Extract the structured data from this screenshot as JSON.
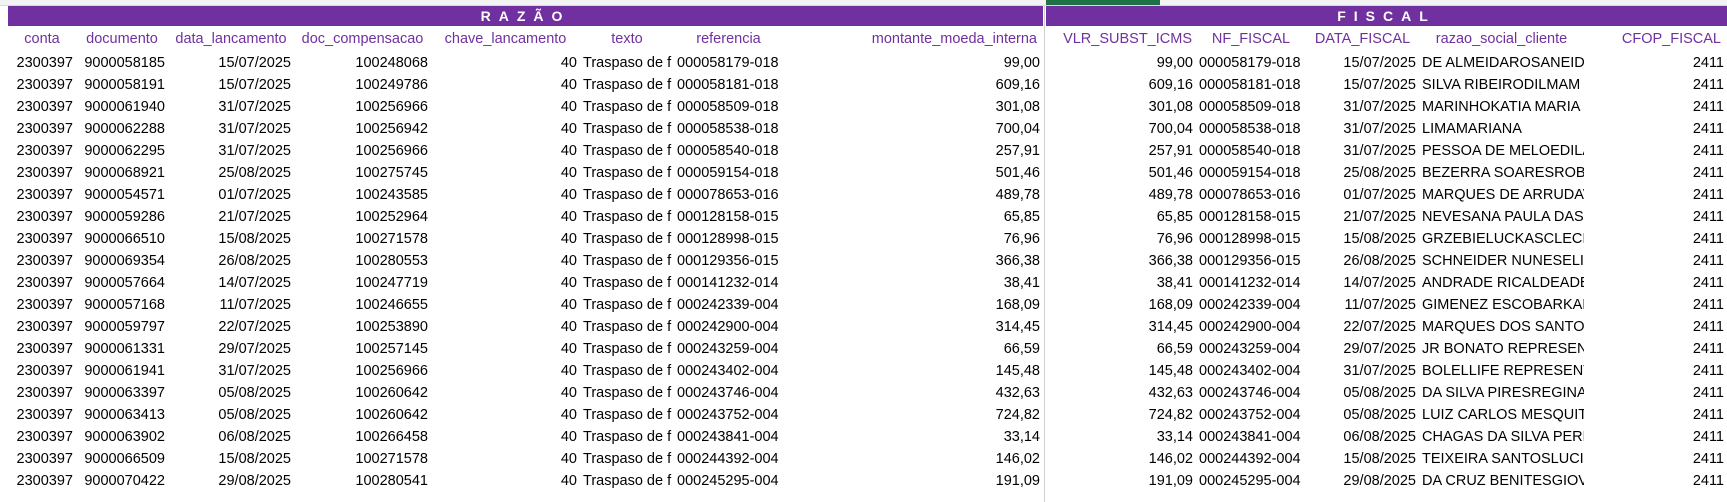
{
  "bands": {
    "razao": "RAZÃO",
    "fiscal": "FISCAL"
  },
  "razao_columns": [
    "conta",
    "documento",
    "data_lancamento",
    "doc_compensacao",
    "chave_lancamento",
    "texto",
    "referencia",
    "montante_moeda_interna"
  ],
  "fiscal_columns": [
    "VLR_SUBST_ICMS",
    "NF_FISCAL",
    "DATA_FISCAL",
    "razao_social_cliente",
    "CFOP_FISCAL"
  ],
  "rows": [
    {
      "conta": "2300397",
      "documento": "9000058185",
      "data_lancamento": "15/07/2025",
      "doc_compensacao": "100248068",
      "chave_lancamento": "40",
      "texto": "Traspaso de f",
      "referencia": "000058179-018",
      "montante": "99,00",
      "vlr_subst_icms": "99,00",
      "nf_fiscal": "000058179-018",
      "data_fiscal": "15/07/2025",
      "razao_social_cliente": "DE ALMEIDAROSANEIDE",
      "cfop_fiscal": "2411"
    },
    {
      "conta": "2300397",
      "documento": "9000058191",
      "data_lancamento": "15/07/2025",
      "doc_compensacao": "100249786",
      "chave_lancamento": "40",
      "texto": "Traspaso de f",
      "referencia": "000058181-018",
      "montante": "609,16",
      "vlr_subst_icms": "609,16",
      "nf_fiscal": "000058181-018",
      "data_fiscal": "15/07/2025",
      "razao_social_cliente": "SILVA RIBEIRODILMAM",
      "cfop_fiscal": "2411"
    },
    {
      "conta": "2300397",
      "documento": "9000061940",
      "data_lancamento": "31/07/2025",
      "doc_compensacao": "100256966",
      "chave_lancamento": "40",
      "texto": "Traspaso de f",
      "referencia": "000058509-018",
      "montante": "301,08",
      "vlr_subst_icms": "301,08",
      "nf_fiscal": "000058509-018",
      "data_fiscal": "31/07/2025",
      "razao_social_cliente": "MARINHOKATIA MARIA",
      "cfop_fiscal": "2411"
    },
    {
      "conta": "2300397",
      "documento": "9000062288",
      "data_lancamento": "31/07/2025",
      "doc_compensacao": "100256942",
      "chave_lancamento": "40",
      "texto": "Traspaso de f",
      "referencia": "000058538-018",
      "montante": "700,04",
      "vlr_subst_icms": "700,04",
      "nf_fiscal": "000058538-018",
      "data_fiscal": "31/07/2025",
      "razao_social_cliente": "LIMAMARIANA",
      "cfop_fiscal": "2411"
    },
    {
      "conta": "2300397",
      "documento": "9000062295",
      "data_lancamento": "31/07/2025",
      "doc_compensacao": "100256966",
      "chave_lancamento": "40",
      "texto": "Traspaso de f",
      "referencia": "000058540-018",
      "montante": "257,91",
      "vlr_subst_icms": "257,91",
      "nf_fiscal": "000058540-018",
      "data_fiscal": "31/07/2025",
      "razao_social_cliente": "PESSOA DE MELOEDILAN",
      "cfop_fiscal": "2411"
    },
    {
      "conta": "2300397",
      "documento": "9000068921",
      "data_lancamento": "25/08/2025",
      "doc_compensacao": "100275745",
      "chave_lancamento": "40",
      "texto": "Traspaso de f",
      "referencia": "000059154-018",
      "montante": "501,46",
      "vlr_subst_icms": "501,46",
      "nf_fiscal": "000059154-018",
      "data_fiscal": "25/08/2025",
      "razao_social_cliente": "BEZERRA SOARESROBSC",
      "cfop_fiscal": "2411"
    },
    {
      "conta": "2300397",
      "documento": "9000054571",
      "data_lancamento": "01/07/2025",
      "doc_compensacao": "100243585",
      "chave_lancamento": "40",
      "texto": "Traspaso de f",
      "referencia": "000078653-016",
      "montante": "489,78",
      "vlr_subst_icms": "489,78",
      "nf_fiscal": "000078653-016",
      "data_fiscal": "01/07/2025",
      "razao_social_cliente": "MARQUES DE ARRUDAVA",
      "cfop_fiscal": "2411"
    },
    {
      "conta": "2300397",
      "documento": "9000059286",
      "data_lancamento": "21/07/2025",
      "doc_compensacao": "100252964",
      "chave_lancamento": "40",
      "texto": "Traspaso de f",
      "referencia": "000128158-015",
      "montante": "65,85",
      "vlr_subst_icms": "65,85",
      "nf_fiscal": "000128158-015",
      "data_fiscal": "21/07/2025",
      "razao_social_cliente": "NEVESANA PAULA DAS N",
      "cfop_fiscal": "2411"
    },
    {
      "conta": "2300397",
      "documento": "9000066510",
      "data_lancamento": "15/08/2025",
      "doc_compensacao": "100271578",
      "chave_lancamento": "40",
      "texto": "Traspaso de f",
      "referencia": "000128998-015",
      "montante": "76,96",
      "vlr_subst_icms": "76,96",
      "nf_fiscal": "000128998-015",
      "data_fiscal": "15/08/2025",
      "razao_social_cliente": "GRZEBIELUCKASCLECI",
      "cfop_fiscal": "2411"
    },
    {
      "conta": "2300397",
      "documento": "9000069354",
      "data_lancamento": "26/08/2025",
      "doc_compensacao": "100280553",
      "chave_lancamento": "40",
      "texto": "Traspaso de f",
      "referencia": "000129356-015",
      "montante": "366,38",
      "vlr_subst_icms": "366,38",
      "nf_fiscal": "000129356-015",
      "data_fiscal": "26/08/2025",
      "razao_social_cliente": "SCHNEIDER NUNESELIS",
      "cfop_fiscal": "2411"
    },
    {
      "conta": "2300397",
      "documento": "9000057664",
      "data_lancamento": "14/07/2025",
      "doc_compensacao": "100247719",
      "chave_lancamento": "40",
      "texto": "Traspaso de f",
      "referencia": "000141232-014",
      "montante": "38,41",
      "vlr_subst_icms": "38,41",
      "nf_fiscal": "000141232-014",
      "data_fiscal": "14/07/2025",
      "razao_social_cliente": "ANDRADE RICALDEADEN",
      "cfop_fiscal": "2411"
    },
    {
      "conta": "2300397",
      "documento": "9000057168",
      "data_lancamento": "11/07/2025",
      "doc_compensacao": "100246655",
      "chave_lancamento": "40",
      "texto": "Traspaso de f",
      "referencia": "000242339-004",
      "montante": "168,09",
      "vlr_subst_icms": "168,09",
      "nf_fiscal": "000242339-004",
      "data_fiscal": "11/07/2025",
      "razao_social_cliente": "GIMENEZ ESCOBARKARI",
      "cfop_fiscal": "2411"
    },
    {
      "conta": "2300397",
      "documento": "9000059797",
      "data_lancamento": "22/07/2025",
      "doc_compensacao": "100253890",
      "chave_lancamento": "40",
      "texto": "Traspaso de f",
      "referencia": "000242900-004",
      "montante": "314,45",
      "vlr_subst_icms": "314,45",
      "nf_fiscal": "000242900-004",
      "data_fiscal": "22/07/2025",
      "razao_social_cliente": "MARQUES DOS SANTOSI",
      "cfop_fiscal": "2411"
    },
    {
      "conta": "2300397",
      "documento": "9000061331",
      "data_lancamento": "29/07/2025",
      "doc_compensacao": "100257145",
      "chave_lancamento": "40",
      "texto": "Traspaso de f",
      "referencia": "000243259-004",
      "montante": "66,59",
      "vlr_subst_icms": "66,59",
      "nf_fiscal": "000243259-004",
      "data_fiscal": "29/07/2025",
      "razao_social_cliente": "JR BONATO REPRESENTA",
      "cfop_fiscal": "2411"
    },
    {
      "conta": "2300397",
      "documento": "9000061941",
      "data_lancamento": "31/07/2025",
      "doc_compensacao": "100256966",
      "chave_lancamento": "40",
      "texto": "Traspaso de f",
      "referencia": "000243402-004",
      "montante": "145,48",
      "vlr_subst_icms": "145,48",
      "nf_fiscal": "000243402-004",
      "data_fiscal": "31/07/2025",
      "razao_social_cliente": "BOLELLIFE REPRESENTA",
      "cfop_fiscal": "2411"
    },
    {
      "conta": "2300397",
      "documento": "9000063397",
      "data_lancamento": "05/08/2025",
      "doc_compensacao": "100260642",
      "chave_lancamento": "40",
      "texto": "Traspaso de f",
      "referencia": "000243746-004",
      "montante": "432,63",
      "vlr_subst_icms": "432,63",
      "nf_fiscal": "000243746-004",
      "data_fiscal": "05/08/2025",
      "razao_social_cliente": "DA SILVA PIRESREGINA",
      "cfop_fiscal": "2411"
    },
    {
      "conta": "2300397",
      "documento": "9000063413",
      "data_lancamento": "05/08/2025",
      "doc_compensacao": "100260642",
      "chave_lancamento": "40",
      "texto": "Traspaso de f",
      "referencia": "000243752-004",
      "montante": "724,82",
      "vlr_subst_icms": "724,82",
      "nf_fiscal": "000243752-004",
      "data_fiscal": "05/08/2025",
      "razao_social_cliente": "LUIZ CARLOS MESQUITA",
      "cfop_fiscal": "2411"
    },
    {
      "conta": "2300397",
      "documento": "9000063902",
      "data_lancamento": "06/08/2025",
      "doc_compensacao": "100266458",
      "chave_lancamento": "40",
      "texto": "Traspaso de f",
      "referencia": "000243841-004",
      "montante": "33,14",
      "vlr_subst_icms": "33,14",
      "nf_fiscal": "000243841-004",
      "data_fiscal": "06/08/2025",
      "razao_social_cliente": "CHAGAS DA SILVA PEREI",
      "cfop_fiscal": "2411"
    },
    {
      "conta": "2300397",
      "documento": "9000066509",
      "data_lancamento": "15/08/2025",
      "doc_compensacao": "100271578",
      "chave_lancamento": "40",
      "texto": "Traspaso de f",
      "referencia": "000244392-004",
      "montante": "146,02",
      "vlr_subst_icms": "146,02",
      "nf_fiscal": "000244392-004",
      "data_fiscal": "15/08/2025",
      "razao_social_cliente": "TEIXEIRA SANTOSLUCILE",
      "cfop_fiscal": "2411"
    },
    {
      "conta": "2300397",
      "documento": "9000070422",
      "data_lancamento": "29/08/2025",
      "doc_compensacao": "100280541",
      "chave_lancamento": "40",
      "texto": "Traspaso de f",
      "referencia": "000245295-004",
      "montante": "191,09",
      "vlr_subst_icms": "191,09",
      "nf_fiscal": "000245295-004",
      "data_fiscal": "29/08/2025",
      "razao_social_cliente": "DA CRUZ BENITESGIOVA",
      "cfop_fiscal": "2411"
    }
  ]
}
